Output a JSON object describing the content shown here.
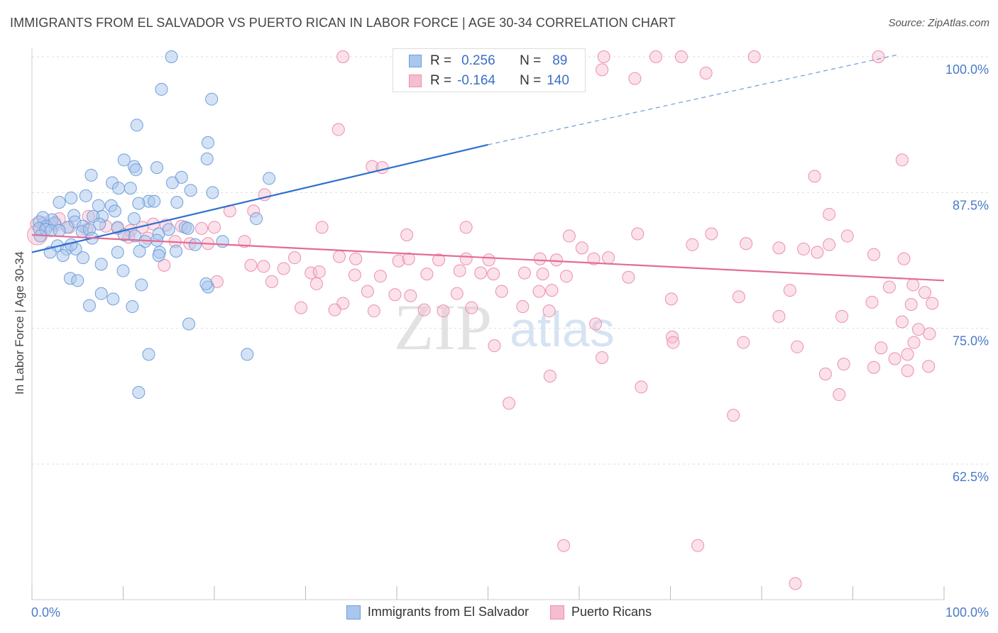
{
  "header": {
    "title": "IMMIGRANTS FROM EL SALVADOR VS PUERTO RICAN IN LABOR FORCE | AGE 30-34 CORRELATION CHART",
    "source": "Source: ZipAtlas.com"
  },
  "legend_top": {
    "rows": [
      {
        "r_label": "R =",
        "r_value": "0.256",
        "n_label": "N =",
        "n_value": "89"
      },
      {
        "r_label": "R =",
        "r_value": "-0.164",
        "n_label": "N =",
        "n_value": "140"
      }
    ]
  },
  "legend_bottom": {
    "items": [
      {
        "label": "Immigrants from El Salvador"
      },
      {
        "label": "Puerto Ricans"
      }
    ]
  },
  "watermark": {
    "part1": "ZIP",
    "part2": "atlas"
  },
  "chart_data": {
    "type": "scatter",
    "title": "IMMIGRANTS FROM EL SALVADOR VS PUERTO RICAN IN LABOR FORCE | AGE 30-34 CORRELATION CHART",
    "xlabel": "",
    "ylabel": "In Labor Force | Age 30-34",
    "xlim": [
      0,
      100
    ],
    "ylim": [
      50.5,
      100.5
    ],
    "x_tick_labels": [
      "0.0%",
      "100.0%"
    ],
    "y_ticks": [
      62.5,
      75.0,
      87.5,
      100.0
    ],
    "y_tick_labels": [
      "62.5%",
      "75.0%",
      "87.5%",
      "100.0%"
    ],
    "grid": true,
    "legend_position": "top-center",
    "colors": {
      "series1_fill": "#a9c6ec",
      "series1_stroke": "#6f9fdc",
      "series1_line": "#2d6fcf",
      "series2_fill": "#f6bccf",
      "series2_stroke": "#ec8fae",
      "series2_line": "#e46b95",
      "tick_label": "#4a7bc8",
      "grid": "#dddddd"
    },
    "series": [
      {
        "name": "Immigrants from El Salvador",
        "r": 0.256,
        "n": 89,
        "trend": {
          "x0": 0,
          "y0": 82.0,
          "x1": 50,
          "y1": 91.9,
          "dashed_to": {
            "x": 95,
            "y": 100.2
          }
        },
        "points": [
          [
            15.3,
            100
          ],
          [
            14.2,
            97
          ],
          [
            19.7,
            96.1
          ],
          [
            11.5,
            93.7
          ],
          [
            19.3,
            92.1
          ],
          [
            19.2,
            90.6
          ],
          [
            10.1,
            90.5
          ],
          [
            11.2,
            89.9
          ],
          [
            13.7,
            89.8
          ],
          [
            11.4,
            89.6
          ],
          [
            6.5,
            89.1
          ],
          [
            16.4,
            88.9
          ],
          [
            26,
            88.8
          ],
          [
            8.8,
            88.4
          ],
          [
            15.4,
            88.4
          ],
          [
            9.5,
            87.9
          ],
          [
            10.8,
            87.9
          ],
          [
            17.4,
            87.7
          ],
          [
            5.9,
            87.2
          ],
          [
            19.8,
            87.5
          ],
          [
            4.3,
            87
          ],
          [
            3.0,
            86.6
          ],
          [
            7.3,
            86.3
          ],
          [
            12.8,
            86.7
          ],
          [
            13.4,
            86.7
          ],
          [
            11.7,
            86.5
          ],
          [
            15.9,
            86.6
          ],
          [
            8.7,
            86.3
          ],
          [
            9.1,
            85.8
          ],
          [
            11.2,
            85.1
          ],
          [
            4.6,
            85.4
          ],
          [
            7.7,
            85.3
          ],
          [
            2.2,
            85.0
          ],
          [
            1.2,
            85.2
          ],
          [
            6.7,
            85.3
          ],
          [
            4.7,
            84.8
          ],
          [
            24.6,
            85.1
          ],
          [
            0.8,
            84.8
          ],
          [
            1.6,
            84.4
          ],
          [
            2.5,
            84.7
          ],
          [
            3.9,
            84.3
          ],
          [
            5.6,
            84.4
          ],
          [
            7.4,
            84.6
          ],
          [
            9.4,
            84.3
          ],
          [
            0.8,
            84.2
          ],
          [
            1.5,
            84.1
          ],
          [
            2.1,
            84.0
          ],
          [
            3.0,
            84.0
          ],
          [
            5.5,
            83.9
          ],
          [
            6.3,
            84.1
          ],
          [
            0.9,
            83.5
          ],
          [
            13.9,
            83.7
          ],
          [
            15.0,
            84.1
          ],
          [
            16.8,
            84.3
          ],
          [
            17.1,
            84.2
          ],
          [
            10.1,
            83.6
          ],
          [
            11.3,
            83.5
          ],
          [
            12.4,
            83.0
          ],
          [
            13.7,
            83.1
          ],
          [
            20.9,
            83.0
          ],
          [
            2.8,
            82.6
          ],
          [
            3.8,
            82.3
          ],
          [
            4.8,
            82.3
          ],
          [
            17.9,
            82.7
          ],
          [
            2.0,
            82.0
          ],
          [
            9.4,
            82.0
          ],
          [
            5.6,
            81.5
          ],
          [
            3.4,
            81.7
          ],
          [
            7.6,
            80.9
          ],
          [
            14.0,
            82.0
          ],
          [
            11.8,
            82.1
          ],
          [
            13.9,
            81.7
          ],
          [
            10.0,
            80.3
          ],
          [
            4.2,
            79.6
          ],
          [
            5.0,
            79.4
          ],
          [
            12.0,
            79.0
          ],
          [
            19.3,
            78.8
          ],
          [
            19.1,
            79.1
          ],
          [
            11.0,
            77.0
          ],
          [
            8.9,
            77.7
          ],
          [
            6.3,
            77.1
          ],
          [
            7.6,
            78.2
          ],
          [
            17.2,
            75.4
          ],
          [
            12.8,
            72.6
          ],
          [
            23.6,
            72.6
          ],
          [
            11.7,
            69.1
          ],
          [
            4.3,
            82.7
          ],
          [
            6.6,
            83.3
          ],
          [
            15.8,
            82.1
          ]
        ]
      },
      {
        "name": "Puerto Ricans",
        "r": -0.164,
        "n": 140,
        "trend": {
          "x0": 0,
          "y0": 83.6,
          "x1": 100,
          "y1": 79.4
        },
        "points": [
          [
            34.1,
            100
          ],
          [
            46,
            100
          ],
          [
            46.4,
            100
          ],
          [
            59.5,
            100
          ],
          [
            62.7,
            100
          ],
          [
            68.4,
            100
          ],
          [
            71.2,
            100
          ],
          [
            79.2,
            100
          ],
          [
            92.8,
            100
          ],
          [
            62.5,
            98.8
          ],
          [
            73.9,
            98.5
          ],
          [
            66.1,
            98.0
          ],
          [
            33.6,
            93.3
          ],
          [
            95.4,
            90.5
          ],
          [
            37.3,
            89.9
          ],
          [
            38.4,
            89.8
          ],
          [
            85.8,
            89.0
          ],
          [
            25.5,
            87.3
          ],
          [
            21.7,
            85.8
          ],
          [
            24.3,
            85.8
          ],
          [
            87.4,
            85.5
          ],
          [
            3.0,
            85.1
          ],
          [
            6.2,
            85.3
          ],
          [
            0.5,
            84.6
          ],
          [
            1.3,
            84.7
          ],
          [
            2.6,
            84.5
          ],
          [
            4.1,
            84.3
          ],
          [
            6.0,
            84.1
          ],
          [
            8.1,
            84.4
          ],
          [
            9.4,
            84.2
          ],
          [
            10.8,
            84.0
          ],
          [
            12.1,
            84.3
          ],
          [
            13.3,
            84.6
          ],
          [
            14.7,
            84.5
          ],
          [
            16.4,
            84.4
          ],
          [
            18.6,
            84.2
          ],
          [
            20.0,
            84.3
          ],
          [
            31.8,
            84.3
          ],
          [
            47.6,
            84.3
          ],
          [
            66.4,
            83.7
          ],
          [
            74.5,
            83.7
          ],
          [
            89.4,
            83.5
          ],
          [
            58.9,
            83.5
          ],
          [
            10.6,
            83.4
          ],
          [
            12.7,
            83.3
          ],
          [
            15.7,
            83.0
          ],
          [
            17.3,
            82.8
          ],
          [
            19.3,
            82.8
          ],
          [
            23.3,
            83.0
          ],
          [
            41.1,
            83.6
          ],
          [
            78.3,
            82.8
          ],
          [
            87.4,
            82.7
          ],
          [
            72.4,
            82.7
          ],
          [
            60.3,
            82.4
          ],
          [
            81.9,
            82.4
          ],
          [
            84.6,
            82.3
          ],
          [
            86.1,
            82.0
          ],
          [
            92.3,
            81.8
          ],
          [
            95.6,
            81.4
          ],
          [
            28.8,
            81.5
          ],
          [
            33.7,
            81.6
          ],
          [
            35.5,
            81.4
          ],
          [
            40.2,
            81.2
          ],
          [
            41.3,
            81.4
          ],
          [
            44.6,
            81.3
          ],
          [
            47.6,
            81.4
          ],
          [
            50.1,
            81.3
          ],
          [
            55.7,
            81.4
          ],
          [
            57.5,
            81.3
          ],
          [
            61.6,
            81.4
          ],
          [
            63.2,
            81.5
          ],
          [
            14.5,
            80.8
          ],
          [
            24.0,
            80.8
          ],
          [
            25.4,
            80.7
          ],
          [
            27.6,
            80.5
          ],
          [
            30.6,
            80.1
          ],
          [
            31.5,
            80.2
          ],
          [
            35.4,
            79.9
          ],
          [
            38.2,
            79.8
          ],
          [
            43.3,
            80.0
          ],
          [
            46.9,
            80.3
          ],
          [
            49.2,
            80.1
          ],
          [
            50.6,
            80.0
          ],
          [
            54.0,
            80.1
          ],
          [
            56.0,
            80.0
          ],
          [
            58.6,
            79.8
          ],
          [
            20.3,
            79.3
          ],
          [
            26.3,
            79.3
          ],
          [
            31.2,
            79.1
          ],
          [
            36.8,
            78.4
          ],
          [
            39.8,
            78.1
          ],
          [
            41.5,
            78.0
          ],
          [
            46.6,
            78.2
          ],
          [
            51.5,
            78.4
          ],
          [
            55.6,
            78.4
          ],
          [
            57.0,
            78.5
          ],
          [
            65.4,
            79.7
          ],
          [
            96.6,
            79.0
          ],
          [
            94.0,
            78.8
          ],
          [
            97.9,
            78.3
          ],
          [
            83.1,
            78.5
          ],
          [
            77.5,
            77.9
          ],
          [
            70.1,
            77.7
          ],
          [
            92.1,
            77.4
          ],
          [
            96.4,
            77.2
          ],
          [
            98.7,
            77.3
          ],
          [
            29.5,
            76.9
          ],
          [
            34.1,
            77.3
          ],
          [
            33.2,
            76.7
          ],
          [
            37.5,
            76.6
          ],
          [
            45.1,
            76.6
          ],
          [
            43.0,
            76.7
          ],
          [
            48.2,
            76.9
          ],
          [
            53.8,
            77.0
          ],
          [
            56.7,
            76.6
          ],
          [
            61.8,
            75.4
          ],
          [
            81.9,
            76.1
          ],
          [
            88.8,
            76.1
          ],
          [
            95.4,
            75.6
          ],
          [
            97.2,
            74.9
          ],
          [
            98.4,
            74.5
          ],
          [
            70.2,
            74.2
          ],
          [
            50.7,
            73.4
          ],
          [
            62.5,
            72.3
          ],
          [
            70.3,
            73.7
          ],
          [
            78.0,
            73.7
          ],
          [
            83.9,
            73.3
          ],
          [
            89.0,
            71.7
          ],
          [
            92.3,
            71.4
          ],
          [
            93.1,
            73.2
          ],
          [
            96.0,
            72.6
          ],
          [
            96.7,
            73.7
          ],
          [
            94.6,
            72.2
          ],
          [
            96.0,
            71.1
          ],
          [
            98.3,
            71.5
          ],
          [
            87.0,
            70.8
          ],
          [
            88.5,
            68.9
          ],
          [
            56.8,
            70.6
          ],
          [
            66.8,
            69.6
          ],
          [
            76.9,
            67.0
          ],
          [
            52.3,
            68.1
          ],
          [
            58.3,
            55.0
          ],
          [
            73.0,
            55.0
          ],
          [
            83.7,
            51.5
          ]
        ]
      }
    ]
  }
}
